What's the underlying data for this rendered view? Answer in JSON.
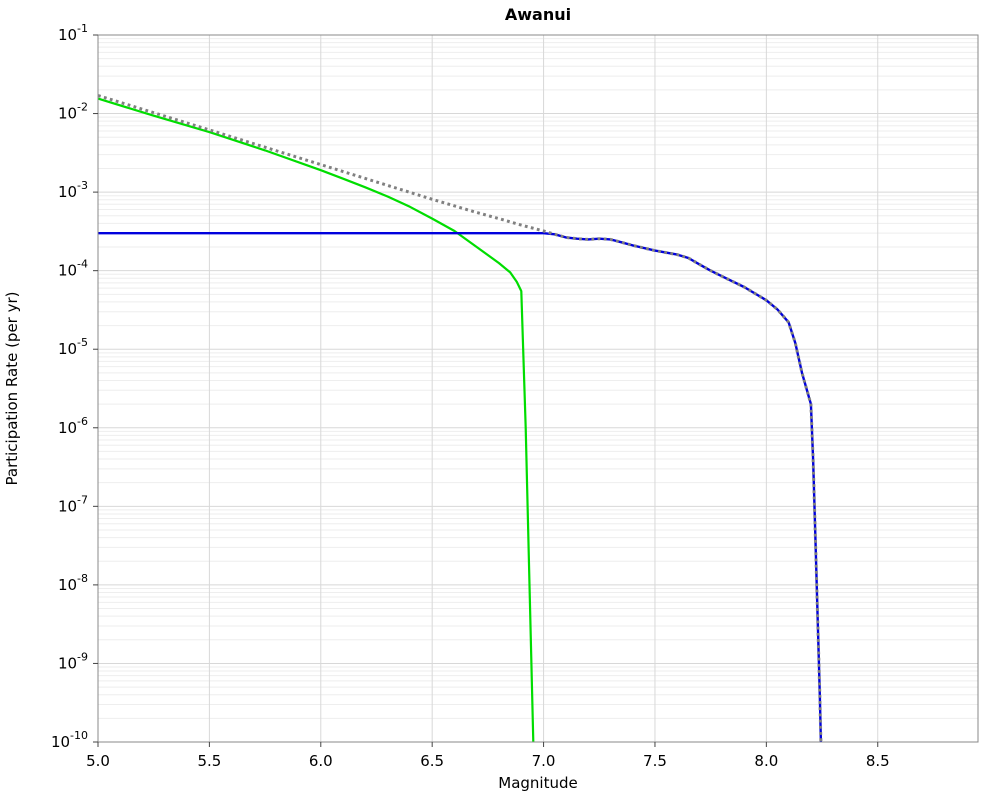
{
  "chart_data": {
    "type": "line",
    "title": "Awanui",
    "xlabel": "Magnitude",
    "ylabel": "Participation Rate (per yr)",
    "xlim": [
      5.0,
      8.95
    ],
    "ylim": [
      1e-10,
      0.1
    ],
    "y_scale": "log",
    "grid": true,
    "legend": "none",
    "x_ticks": [
      "5.0",
      "5.5",
      "6.0",
      "6.5",
      "7.0",
      "7.5",
      "8.0",
      "8.5"
    ],
    "x_tick_values": [
      5.0,
      5.5,
      6.0,
      6.5,
      7.0,
      7.5,
      8.0,
      8.5
    ],
    "y_tick_exponents": [
      -1,
      -2,
      -3,
      -4,
      -5,
      -6,
      -7,
      -8,
      -9,
      -10
    ],
    "colors": {
      "green_line": "#00dd00",
      "blue_line": "#0000dd",
      "gray_dotted_line": "#808080",
      "grid_major": "#d8d8d8",
      "grid_minor": "#eeeeee",
      "frame": "#888888",
      "tick": "#444444"
    },
    "series": [
      {
        "name": "green-solid-curve",
        "color": "#00dd00",
        "style": "solid",
        "width": 2.2,
        "points": [
          [
            5.0,
            0.0155
          ],
          [
            5.25,
            0.0094
          ],
          [
            5.5,
            0.0058
          ],
          [
            5.75,
            0.0034
          ],
          [
            6.0,
            0.0019
          ],
          [
            6.1,
            0.00148
          ],
          [
            6.2,
            0.00115
          ],
          [
            6.3,
            0.00088
          ],
          [
            6.4,
            0.00065
          ],
          [
            6.5,
            0.00046
          ],
          [
            6.6,
            0.00032
          ],
          [
            6.7,
            0.0002
          ],
          [
            6.8,
            0.000125
          ],
          [
            6.85,
            9.5e-05
          ],
          [
            6.88,
            7.2e-05
          ],
          [
            6.9,
            5.5e-05
          ],
          [
            6.92,
            1e-06
          ],
          [
            6.937,
            1e-08
          ],
          [
            6.954,
            1e-10
          ]
        ]
      },
      {
        "name": "blue-solid-curve",
        "color": "#0000dd",
        "style": "solid",
        "width": 2.4,
        "points": [
          [
            5.0,
            0.0003
          ],
          [
            7.0,
            0.0003
          ],
          [
            7.05,
            0.00029
          ],
          [
            7.1,
            0.000265
          ],
          [
            7.15,
            0.000255
          ],
          [
            7.2,
            0.00025
          ],
          [
            7.25,
            0.000255
          ],
          [
            7.3,
            0.00025
          ],
          [
            7.35,
            0.00023
          ],
          [
            7.4,
            0.00021
          ],
          [
            7.5,
            0.00018
          ],
          [
            7.6,
            0.00016
          ],
          [
            7.65,
            0.000145
          ],
          [
            7.7,
            0.00012
          ],
          [
            7.75,
            0.0001
          ],
          [
            7.8,
            8.5e-05
          ],
          [
            7.9,
            6.2e-05
          ],
          [
            8.0,
            4.2e-05
          ],
          [
            8.05,
            3.2e-05
          ],
          [
            8.1,
            2.2e-05
          ],
          [
            8.13,
            1.2e-05
          ],
          [
            8.16,
            5e-06
          ],
          [
            8.2,
            2e-06
          ],
          [
            8.21,
            4e-07
          ],
          [
            8.22,
            4e-08
          ],
          [
            8.23,
            4e-09
          ],
          [
            8.24,
            4e-10
          ],
          [
            8.245,
            1e-10
          ]
        ]
      },
      {
        "name": "gray-dotted-curve",
        "color": "#808080",
        "style": "dotted",
        "width": 3,
        "points": [
          [
            5.0,
            0.017
          ],
          [
            5.5,
            0.0062
          ],
          [
            6.0,
            0.00224
          ],
          [
            6.5,
            0.00081
          ],
          [
            6.7,
            0.00055
          ],
          [
            6.8,
            0.00046
          ],
          [
            6.9,
            0.00038
          ],
          [
            7.0,
            0.00032
          ],
          [
            7.05,
            0.00029
          ],
          [
            7.1,
            0.000265
          ],
          [
            7.15,
            0.000255
          ],
          [
            7.2,
            0.00025
          ],
          [
            7.25,
            0.000255
          ],
          [
            7.3,
            0.00025
          ],
          [
            7.35,
            0.00023
          ],
          [
            7.4,
            0.00021
          ],
          [
            7.5,
            0.00018
          ],
          [
            7.6,
            0.00016
          ],
          [
            7.65,
            0.000145
          ],
          [
            7.7,
            0.00012
          ],
          [
            7.75,
            0.0001
          ],
          [
            7.8,
            8.5e-05
          ],
          [
            7.9,
            6.2e-05
          ],
          [
            8.0,
            4.2e-05
          ],
          [
            8.05,
            3.2e-05
          ],
          [
            8.1,
            2.2e-05
          ],
          [
            8.13,
            1.2e-05
          ],
          [
            8.16,
            5e-06
          ],
          [
            8.2,
            2e-06
          ],
          [
            8.21,
            4e-07
          ],
          [
            8.22,
            4e-08
          ],
          [
            8.23,
            4e-09
          ],
          [
            8.24,
            4e-10
          ],
          [
            8.245,
            1e-10
          ]
        ]
      }
    ]
  }
}
